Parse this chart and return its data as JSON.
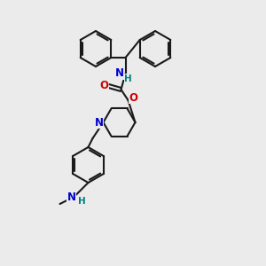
{
  "background_color": "#ebebeb",
  "bond_color": "#1a1a1a",
  "bond_width": 1.5,
  "atom_colors": {
    "N": "#0000cc",
    "O": "#cc0000",
    "H": "#008080",
    "C": "#1a1a1a"
  },
  "font_size_atom": 8.5,
  "font_size_h": 7.5,
  "ring_r": 20,
  "pip_r": 18
}
